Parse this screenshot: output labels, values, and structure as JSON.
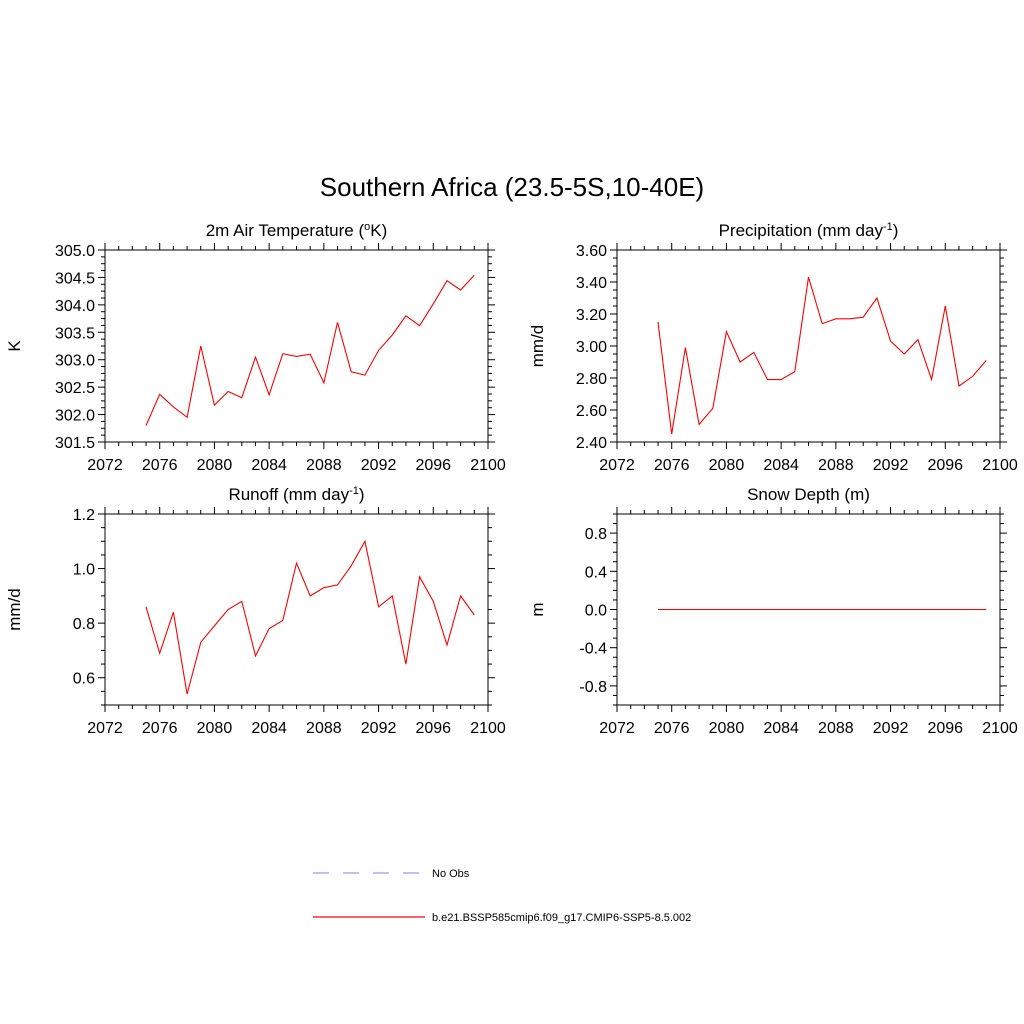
{
  "figure": {
    "title": "Southern Africa (23.5-5S,10-40E)"
  },
  "chart_data": [
    {
      "type": "line",
      "title": "2m Air Temperature (",
      "title_sup": "o",
      "title_end": "K)",
      "xlabel": "",
      "ylabel": "K",
      "xlim": [
        2072,
        2100
      ],
      "ylim": [
        301.5,
        305.0
      ],
      "xticks": [
        2072,
        2076,
        2080,
        2084,
        2088,
        2092,
        2096,
        2100
      ],
      "yticks": [
        301.5,
        302.0,
        302.5,
        303.0,
        303.5,
        304.0,
        304.5,
        305.0
      ],
      "ytick_labels": [
        "301.5",
        "302.0",
        "302.5",
        "303.0",
        "303.5",
        "304.0",
        "304.5",
        "305.0"
      ],
      "x": [
        2075,
        2076,
        2077,
        2078,
        2079,
        2080,
        2081,
        2082,
        2083,
        2084,
        2085,
        2086,
        2087,
        2088,
        2089,
        2090,
        2091,
        2092,
        2093,
        2094,
        2095,
        2096,
        2097,
        2098,
        2099
      ],
      "series": [
        {
          "name": "b.e21.BSSP585cmip6.f09_g17.CMIP6-SSP5-8.5.002",
          "color": "#ff0000",
          "values": [
            301.8,
            302.37,
            302.14,
            301.95,
            303.25,
            302.17,
            302.42,
            302.31,
            303.05,
            302.36,
            303.11,
            303.06,
            303.1,
            302.58,
            303.68,
            302.78,
            302.72,
            303.17,
            303.45,
            303.8,
            303.62,
            304.02,
            304.44,
            304.27,
            304.54
          ]
        }
      ]
    },
    {
      "type": "line",
      "title": "Precipitation (mm day",
      "title_sup": "-1",
      "title_end": ")",
      "xlabel": "",
      "ylabel": "mm/d",
      "xlim": [
        2072,
        2100
      ],
      "ylim": [
        2.4,
        3.6
      ],
      "xticks": [
        2072,
        2076,
        2080,
        2084,
        2088,
        2092,
        2096,
        2100
      ],
      "yticks": [
        2.4,
        2.6,
        2.8,
        3.0,
        3.2,
        3.4,
        3.6
      ],
      "ytick_labels": [
        "2.40",
        "2.60",
        "2.80",
        "3.00",
        "3.20",
        "3.40",
        "3.60"
      ],
      "x": [
        2075,
        2076,
        2077,
        2078,
        2079,
        2080,
        2081,
        2082,
        2083,
        2084,
        2085,
        2086,
        2087,
        2088,
        2089,
        2090,
        2091,
        2092,
        2093,
        2094,
        2095,
        2096,
        2097,
        2098,
        2099
      ],
      "series": [
        {
          "name": "b.e21.BSSP585cmip6.f09_g17.CMIP6-SSP5-8.5.002",
          "color": "#ff0000",
          "values": [
            3.15,
            2.45,
            2.99,
            2.51,
            2.61,
            3.09,
            2.9,
            2.96,
            2.79,
            2.79,
            2.84,
            3.43,
            3.14,
            3.17,
            3.17,
            3.18,
            3.3,
            3.03,
            2.95,
            3.04,
            2.79,
            3.25,
            2.75,
            2.81,
            2.91
          ]
        }
      ]
    },
    {
      "type": "line",
      "title": "Runoff (mm day",
      "title_sup": "-1",
      "title_end": ")",
      "xlabel": "",
      "ylabel": "mm/d",
      "xlim": [
        2072,
        2100
      ],
      "ylim": [
        0.5,
        1.2
      ],
      "xticks": [
        2072,
        2076,
        2080,
        2084,
        2088,
        2092,
        2096,
        2100
      ],
      "yticks": [
        0.6,
        0.8,
        1.0,
        1.2
      ],
      "ytick_labels": [
        "0.6",
        "0.8",
        "1.0",
        "1.2"
      ],
      "x": [
        2075,
        2076,
        2077,
        2078,
        2079,
        2080,
        2081,
        2082,
        2083,
        2084,
        2085,
        2086,
        2087,
        2088,
        2089,
        2090,
        2091,
        2092,
        2093,
        2094,
        2095,
        2096,
        2097,
        2098,
        2099
      ],
      "series": [
        {
          "name": "b.e21.BSSP585cmip6.f09_g17.CMIP6-SSP5-8.5.002",
          "color": "#ff0000",
          "values": [
            0.86,
            0.69,
            0.84,
            0.54,
            0.73,
            0.79,
            0.85,
            0.88,
            0.68,
            0.78,
            0.81,
            1.02,
            0.9,
            0.93,
            0.94,
            1.01,
            1.1,
            0.86,
            0.9,
            0.65,
            0.97,
            0.88,
            0.72,
            0.9,
            0.83
          ]
        }
      ]
    },
    {
      "type": "line",
      "title": "Snow Depth (m)",
      "title_sup": "",
      "title_end": "",
      "xlabel": "",
      "ylabel": "m",
      "xlim": [
        2072,
        2100
      ],
      "ylim": [
        -1.0,
        1.0
      ],
      "xticks": [
        2072,
        2076,
        2080,
        2084,
        2088,
        2092,
        2096,
        2100
      ],
      "yticks": [
        -0.8,
        -0.4,
        0.0,
        0.4,
        0.8
      ],
      "ytick_labels": [
        "-0.8",
        "-0.4",
        "0.0",
        "0.4",
        "0.8"
      ],
      "x": [
        2075,
        2076,
        2077,
        2078,
        2079,
        2080,
        2081,
        2082,
        2083,
        2084,
        2085,
        2086,
        2087,
        2088,
        2089,
        2090,
        2091,
        2092,
        2093,
        2094,
        2095,
        2096,
        2097,
        2098,
        2099
      ],
      "series": [
        {
          "name": "b.e21.BSSP585cmip6.f09_g17.CMIP6-SSP5-8.5.002",
          "color": "#ff0000",
          "values": [
            0,
            0,
            0,
            0,
            0,
            0,
            0,
            0,
            0,
            0,
            0,
            0,
            0,
            0,
            0,
            0,
            0,
            0,
            0,
            0,
            0,
            0,
            0,
            0,
            0
          ]
        }
      ]
    }
  ],
  "legend": {
    "placement": "bottom-center",
    "items": [
      {
        "label": "No Obs",
        "color": "#9999ff",
        "style": "dashed"
      },
      {
        "label": "b.e21.BSSP585cmip6.f09_g17.CMIP6-SSP5-8.5.002",
        "color": "#ff0000",
        "style": "solid"
      }
    ]
  }
}
